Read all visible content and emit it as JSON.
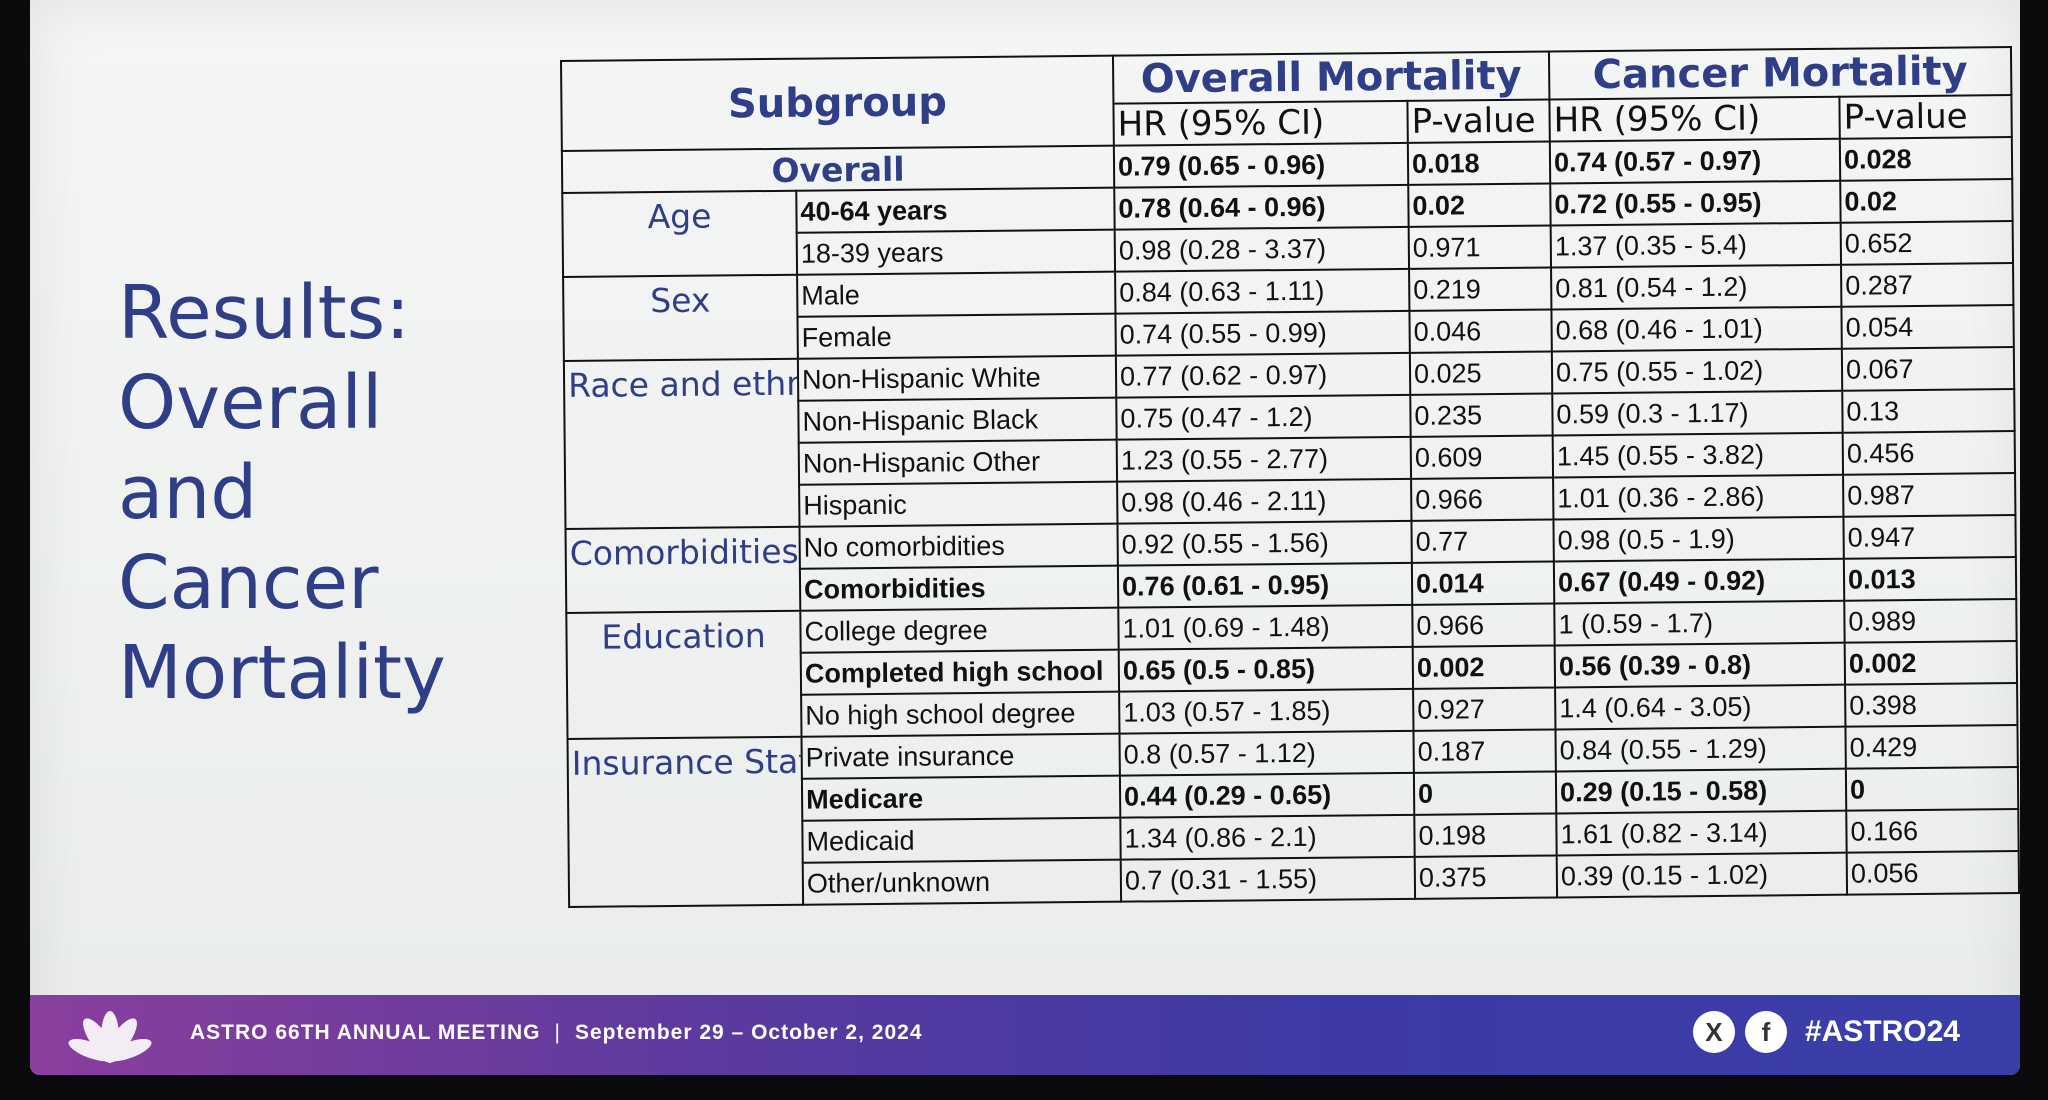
{
  "slide_title": [
    "Results:",
    "Overall and",
    "Cancer",
    "Mortality"
  ],
  "table": {
    "header_subgroup": "Subgroup",
    "header_overall": "Overall Mortality",
    "header_cancer": "Cancer Mortality",
    "sub_hr": "HR (95% CI)",
    "sub_p": "P-value",
    "overall_row": {
      "label": "Overall",
      "om_hr": "0.79 (0.65 - 0.96)",
      "om_p": "0.018",
      "cm_hr": "0.74 (0.57 - 0.97)",
      "cm_p": "0.028"
    },
    "groups": [
      {
        "name": "Age",
        "rows": [
          {
            "sub": "40-64 years",
            "bold": true,
            "om_hr": "0.78 (0.64 - 0.96)",
            "om_p": "0.02",
            "cm_hr": "0.72 (0.55 - 0.95)",
            "cm_p": "0.02"
          },
          {
            "sub": "18-39 years",
            "bold": false,
            "om_hr": "0.98 (0.28 - 3.37)",
            "om_p": "0.971",
            "cm_hr": "1.37 (0.35 - 5.4)",
            "cm_p": "0.652"
          }
        ]
      },
      {
        "name": "Sex",
        "rows": [
          {
            "sub": "Male",
            "bold": false,
            "om_hr": "0.84 (0.63 - 1.11)",
            "om_p": "0.219",
            "cm_hr": "0.81 (0.54 - 1.2)",
            "cm_p": "0.287"
          },
          {
            "sub": "Female",
            "bold": false,
            "om_hr": "0.74 (0.55 - 0.99)",
            "om_p": "0.046",
            "cm_hr": "0.68 (0.46 - 1.01)",
            "cm_p": "0.054"
          }
        ]
      },
      {
        "name": "Race and ethnicity",
        "rows": [
          {
            "sub": "Non-Hispanic White",
            "bold": false,
            "om_hr": "0.77 (0.62 - 0.97)",
            "om_p": "0.025",
            "cm_hr": "0.75 (0.55 - 1.02)",
            "cm_p": "0.067"
          },
          {
            "sub": "Non-Hispanic Black",
            "bold": false,
            "om_hr": "0.75 (0.47 - 1.2)",
            "om_p": "0.235",
            "cm_hr": "0.59 (0.3 - 1.17)",
            "cm_p": "0.13"
          },
          {
            "sub": "Non-Hispanic Other",
            "bold": false,
            "om_hr": "1.23 (0.55 - 2.77)",
            "om_p": "0.609",
            "cm_hr": "1.45 (0.55 - 3.82)",
            "cm_p": "0.456"
          },
          {
            "sub": "Hispanic",
            "bold": false,
            "om_hr": "0.98 (0.46 - 2.11)",
            "om_p": "0.966",
            "cm_hr": "1.01 (0.36 - 2.86)",
            "cm_p": "0.987"
          }
        ]
      },
      {
        "name": "Comorbidities",
        "rows": [
          {
            "sub": "No comorbidities",
            "bold": false,
            "om_hr": "0.92 (0.55 - 1.56)",
            "om_p": "0.77",
            "cm_hr": "0.98 (0.5 - 1.9)",
            "cm_p": "0.947"
          },
          {
            "sub": "Comorbidities",
            "bold": true,
            "om_hr": "0.76 (0.61 - 0.95)",
            "om_p": "0.014",
            "cm_hr": "0.67 (0.49 - 0.92)",
            "cm_p": "0.013"
          }
        ]
      },
      {
        "name": "Education",
        "rows": [
          {
            "sub": "College degree",
            "bold": false,
            "om_hr": "1.01 (0.69 - 1.48)",
            "om_p": "0.966",
            "cm_hr": "1 (0.59 - 1.7)",
            "cm_p": "0.989"
          },
          {
            "sub": "Completed high school",
            "bold": true,
            "om_hr": "0.65 (0.5 - 0.85)",
            "om_p": "0.002",
            "cm_hr": "0.56 (0.39 - 0.8)",
            "cm_p": "0.002"
          },
          {
            "sub": "No high school degree",
            "bold": false,
            "om_hr": "1.03 (0.57 - 1.85)",
            "om_p": "0.927",
            "cm_hr": "1.4 (0.64 - 3.05)",
            "cm_p": "0.398"
          }
        ]
      },
      {
        "name": "Insurance Status",
        "rows": [
          {
            "sub": "Private insurance",
            "bold": false,
            "om_hr": "0.8 (0.57 - 1.12)",
            "om_p": "0.187",
            "cm_hr": "0.84 (0.55 - 1.29)",
            "cm_p": "0.429"
          },
          {
            "sub": "Medicare",
            "bold": true,
            "om_hr": "0.44 (0.29 - 0.65)",
            "om_p": "0",
            "cm_hr": "0.29 (0.15 - 0.58)",
            "cm_p": "0"
          },
          {
            "sub": "Medicaid",
            "bold": false,
            "om_hr": "1.34 (0.86 - 2.1)",
            "om_p": "0.198",
            "cm_hr": "1.61 (0.82 - 3.14)",
            "cm_p": "0.166"
          },
          {
            "sub": "Other/unknown",
            "bold": false,
            "om_hr": "0.7 (0.31 - 1.55)",
            "om_p": "0.375",
            "cm_hr": "0.39 (0.15 - 1.02)",
            "cm_p": "0.056"
          }
        ]
      }
    ]
  },
  "footer": {
    "meeting": "ASTRO 66TH ANNUAL MEETING",
    "separator": "|",
    "dates": "September 29 – October 2, 2024",
    "x_glyph": "X",
    "f_glyph": "f",
    "hashtag": "#ASTRO24",
    "icons": [
      "flower-logo-icon",
      "x-social-icon",
      "facebook-icon"
    ]
  }
}
